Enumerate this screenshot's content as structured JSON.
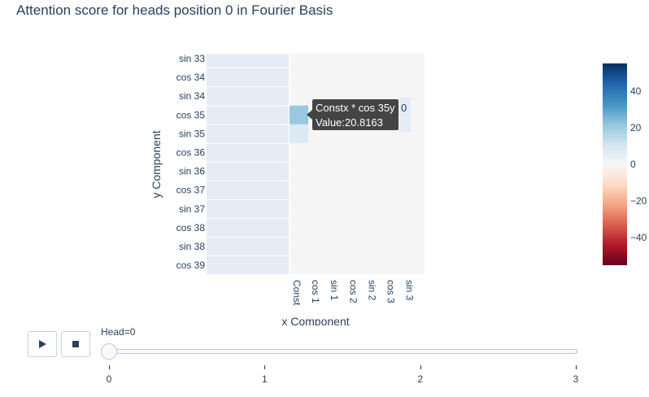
{
  "title": "Attention score for heads position 0 in Fourier Basis",
  "chart_data": {
    "type": "heatmap",
    "xlabel": "x Component",
    "ylabel": "y Component",
    "x_categories": [
      "Const",
      "cos 1",
      "sin 1",
      "cos 2",
      "sin 2",
      "cos 3",
      "sin 3"
    ],
    "y_categories": [
      "sin 33",
      "cos 34",
      "sin 34",
      "cos 35",
      "sin 35",
      "cos 36",
      "sin 36",
      "cos 37",
      "sin 37",
      "cos 38",
      "sin 38",
      "cos 39"
    ],
    "highlighted_cells": [
      {
        "x": "Const",
        "y": "cos 35",
        "value": 20.8163
      },
      {
        "x": "Const",
        "y": "sin 35",
        "value": 8
      }
    ],
    "colorscale": "RdBu",
    "colorbar": {
      "range": [
        -55,
        55
      ],
      "ticks": [
        40,
        20,
        0,
        -20,
        -40
      ]
    }
  },
  "tooltip": {
    "line1": "Constx * cos 35y",
    "line2": "Value:20.8163",
    "extra": "0"
  },
  "slider": {
    "current_label": "Head=0",
    "steps": [
      "0",
      "1",
      "2",
      "3"
    ],
    "current_index": 0
  },
  "controls": {
    "play_icon": "play-icon",
    "stop_icon": "stop-icon"
  }
}
